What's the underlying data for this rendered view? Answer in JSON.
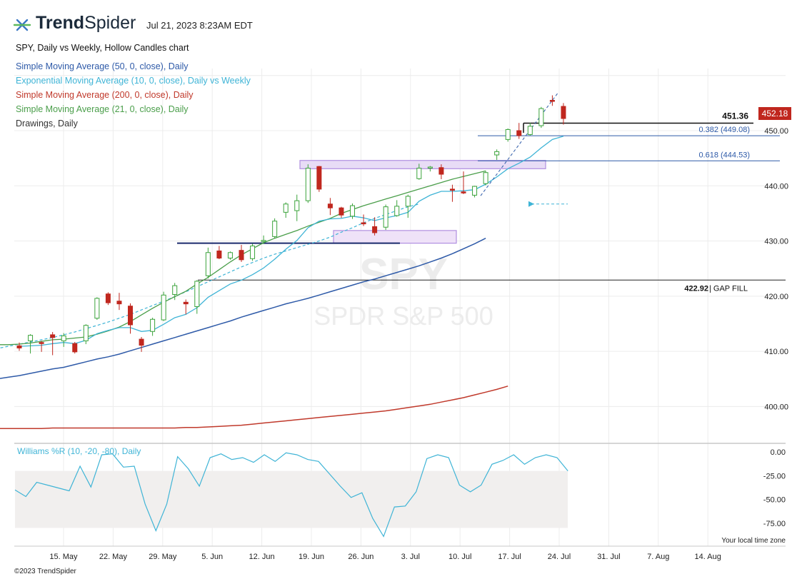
{
  "header": {
    "brand_bold": "Trend",
    "brand_light": "Spider",
    "timestamp": "Jul 21, 2023 8:23AM EDT",
    "chart_title": "SPY, Daily vs Weekly, Hollow Candles chart",
    "legend": [
      {
        "label": "Simple Moving Average (50, 0, close), Daily",
        "color": "#2e5aa8"
      },
      {
        "label": "Exponential Moving Average (10, 0, close), Daily vs Weekly",
        "color": "#3fb4d6"
      },
      {
        "label": "Simple Moving Average (200, 0, close), Daily",
        "color": "#c0392b"
      },
      {
        "label": "Simple Moving Average (21, 0, close), Daily",
        "color": "#4a9e4a"
      },
      {
        "label": "Drawings, Daily",
        "color": "#333333"
      }
    ]
  },
  "watermark": {
    "symbol": "SPY",
    "name": "SPDR S&P 500"
  },
  "last_price": "452.18",
  "footer": {
    "copyright": "©2023 TrendSpider",
    "timezone": "Your local time zone"
  },
  "chart_data": {
    "type": "candlestick",
    "ylim": [
      395,
      461
    ],
    "yticks": [
      "400.00",
      "410.00",
      "420.00",
      "430.00",
      "440.00",
      "450.00"
    ],
    "xticks": [
      "15. May",
      "22. May",
      "29. May",
      "5. Jun",
      "12. Jun",
      "19. Jun",
      "26. Jun",
      "3. Jul",
      "10. Jul",
      "17. Jul",
      "24. Jul",
      "31. Jul",
      "7. Aug",
      "14. Aug"
    ],
    "candles": [
      {
        "o": 411.0,
        "h": 411.6,
        "l": 410.1,
        "c": 410.6
      },
      {
        "o": 411.9,
        "h": 413.1,
        "l": 409.6,
        "c": 412.9
      },
      {
        "o": 411.6,
        "h": 411.9,
        "l": 409.9,
        "c": 411.4
      },
      {
        "o": 413.0,
        "h": 413.5,
        "l": 409.3,
        "c": 412.5
      },
      {
        "o": 411.9,
        "h": 413.3,
        "l": 410.8,
        "c": 412.8
      },
      {
        "o": 411.4,
        "h": 411.7,
        "l": 409.6,
        "c": 409.9
      },
      {
        "o": 411.9,
        "h": 414.9,
        "l": 411.3,
        "c": 414.7
      },
      {
        "o": 416.0,
        "h": 419.8,
        "l": 415.7,
        "c": 419.6
      },
      {
        "o": 420.4,
        "h": 420.7,
        "l": 418.4,
        "c": 418.8
      },
      {
        "o": 419.1,
        "h": 420.6,
        "l": 417.5,
        "c": 418.6
      },
      {
        "o": 418.2,
        "h": 418.7,
        "l": 413.2,
        "c": 414.8
      },
      {
        "o": 412.2,
        "h": 412.6,
        "l": 409.9,
        "c": 411.1
      },
      {
        "o": 413.6,
        "h": 416.1,
        "l": 412.8,
        "c": 415.8
      },
      {
        "o": 415.7,
        "h": 420.8,
        "l": 415.5,
        "c": 420.2
      },
      {
        "o": 420.3,
        "h": 422.4,
        "l": 419.3,
        "c": 421.9
      },
      {
        "o": 418.9,
        "h": 419.4,
        "l": 416.7,
        "c": 418.6
      },
      {
        "o": 418.1,
        "h": 422.9,
        "l": 416.8,
        "c": 422.7
      },
      {
        "o": 423.7,
        "h": 428.8,
        "l": 423.2,
        "c": 427.9
      },
      {
        "o": 428.2,
        "h": 429.1,
        "l": 426.7,
        "c": 426.9
      },
      {
        "o": 426.9,
        "h": 428.1,
        "l": 426.6,
        "c": 427.9
      },
      {
        "o": 428.3,
        "h": 429.3,
        "l": 426.2,
        "c": 426.6
      },
      {
        "o": 426.8,
        "h": 429.5,
        "l": 426.4,
        "c": 429.1
      },
      {
        "o": 430.0,
        "h": 431.0,
        "l": 429.5,
        "c": 430.1
      },
      {
        "o": 430.8,
        "h": 434.1,
        "l": 430.5,
        "c": 433.6
      },
      {
        "o": 435.2,
        "h": 437.0,
        "l": 434.2,
        "c": 436.7
      },
      {
        "o": 435.5,
        "h": 438.4,
        "l": 433.6,
        "c": 437.3
      },
      {
        "o": 437.3,
        "h": 443.9,
        "l": 436.9,
        "c": 443.2
      },
      {
        "o": 443.5,
        "h": 443.6,
        "l": 438.9,
        "c": 439.4
      },
      {
        "o": 436.7,
        "h": 437.8,
        "l": 434.7,
        "c": 436.0
      },
      {
        "o": 436.0,
        "h": 436.2,
        "l": 434.2,
        "c": 434.7
      },
      {
        "o": 434.5,
        "h": 436.8,
        "l": 434.0,
        "c": 436.4
      },
      {
        "o": 433.3,
        "h": 434.8,
        "l": 432.7,
        "c": 433.1
      },
      {
        "o": 432.6,
        "h": 434.3,
        "l": 431.0,
        "c": 431.5
      },
      {
        "o": 432.5,
        "h": 436.6,
        "l": 432.0,
        "c": 436.2
      },
      {
        "o": 434.6,
        "h": 437.4,
        "l": 434.4,
        "c": 436.3
      },
      {
        "o": 436.3,
        "h": 438.4,
        "l": 434.2,
        "c": 438.1
      },
      {
        "o": 441.3,
        "h": 444.0,
        "l": 441.1,
        "c": 443.2
      },
      {
        "o": 443.2,
        "h": 443.6,
        "l": 442.6,
        "c": 443.4
      },
      {
        "o": 443.3,
        "h": 443.9,
        "l": 441.2,
        "c": 442.1
      },
      {
        "o": 439.4,
        "h": 440.2,
        "l": 437.1,
        "c": 439.2
      },
      {
        "o": 438.9,
        "h": 442.6,
        "l": 438.5,
        "c": 438.7
      },
      {
        "o": 438.3,
        "h": 440.0,
        "l": 437.9,
        "c": 439.9
      },
      {
        "o": 440.4,
        "h": 442.7,
        "l": 440.1,
        "c": 442.4
      },
      {
        "o": 445.6,
        "h": 446.6,
        "l": 444.7,
        "c": 446.2
      },
      {
        "o": 448.4,
        "h": 450.4,
        "l": 448.0,
        "c": 450.2
      },
      {
        "o": 450.0,
        "h": 451.4,
        "l": 448.5,
        "c": 449.1
      },
      {
        "o": 449.3,
        "h": 451.4,
        "l": 449.1,
        "c": 450.8
      },
      {
        "o": 450.9,
        "h": 454.3,
        "l": 450.5,
        "c": 454.0
      },
      {
        "o": 455.5,
        "h": 456.4,
        "l": 454.5,
        "c": 455.3
      },
      {
        "o": 454.4,
        "h": 455.0,
        "l": 451.1,
        "c": 452.2
      }
    ],
    "series": [
      {
        "name": "Simple Moving Average (50, 0, close), Daily",
        "color": "#2e5aa8",
        "values": [
          403.6,
          403.9,
          404.2,
          404.5,
          404.8,
          405.0,
          405.3,
          405.6,
          406.0,
          406.4,
          406.8,
          407.1,
          407.6,
          408.1,
          408.6,
          409.0,
          409.5,
          410.1,
          410.7,
          411.3,
          411.9,
          412.5,
          413.1,
          413.7,
          414.3,
          414.9,
          415.5,
          416.2,
          416.8,
          417.4,
          418.0,
          418.6,
          419.1,
          419.6,
          420.2,
          420.8,
          421.4,
          422.0,
          422.6,
          423.1,
          423.7,
          424.3,
          424.9,
          425.5,
          426.2,
          426.9,
          427.7,
          428.6,
          429.5,
          430.5
        ]
      },
      {
        "name": "Exponential Moving Average (10, 0, close), Daily vs Weekly",
        "color": "#3fb4d6",
        "dashed": true,
        "values": [
          408.6,
          408.9,
          409.2,
          409.6,
          410.1,
          410.5,
          410.9,
          411.3,
          411.7,
          412.1,
          412.5,
          413.0,
          413.5,
          414.1,
          414.7,
          415.3,
          416.0,
          416.7,
          417.5,
          418.3,
          419.1,
          419.9,
          420.8,
          421.7,
          422.6,
          423.5,
          424.4,
          425.3,
          426.1,
          426.9,
          427.6,
          428.2,
          428.8,
          429.4,
          430.0,
          430.7,
          431.6,
          432.4,
          433.3,
          434.1,
          434.8,
          435.5,
          436.2,
          436.7
        ]
      },
      {
        "name": "Simple Moving Average (21, 0, close), Daily",
        "color": "#4a9e4a",
        "values": [
          410.8,
          410.8,
          410.9,
          411.0,
          411.1,
          411.2,
          411.2,
          411.3,
          411.5,
          411.8,
          412.1,
          412.2,
          412.4,
          412.6,
          413.1,
          413.7,
          414.4,
          415.4,
          416.6,
          417.8,
          418.9,
          419.9,
          420.9,
          422.2,
          423.4,
          424.8,
          426.2,
          427.5,
          428.6,
          429.7,
          430.5,
          431.2,
          431.9,
          432.7,
          433.4,
          434.1,
          435.0,
          435.7,
          436.4,
          437.0,
          437.6,
          438.2,
          438.8,
          439.4,
          440.0,
          440.6,
          441.2,
          441.7,
          442.2,
          442.7
        ]
      },
      {
        "name": "Exponential Moving Average (10)",
        "color": "#3fb4d6",
        "values": [
          410.9,
          411.0,
          411.1,
          411.4,
          411.6,
          411.4,
          412.0,
          413.2,
          413.8,
          414.3,
          414.3,
          413.6,
          413.8,
          414.9,
          416.1,
          416.7,
          417.9,
          419.8,
          421.0,
          422.2,
          422.9,
          423.9,
          425.1,
          426.7,
          428.5,
          430.1,
          432.4,
          433.6,
          434.0,
          434.1,
          434.5,
          434.2,
          433.7,
          434.2,
          434.6,
          435.2,
          437.2,
          438.3,
          439.0,
          439.0,
          439.1,
          439.3,
          440.3,
          441.6,
          443.1,
          444.1,
          445.2,
          446.9,
          448.4,
          449.0
        ]
      },
      {
        "name": "Simple Moving Average (200, 0, close), Daily",
        "color": "#c0392b",
        "values": [
          395.8,
          395.8,
          395.9,
          395.9,
          396.0,
          396.0,
          396.0,
          396.0,
          396.0,
          396.0,
          396.1,
          396.1,
          396.1,
          396.1,
          396.1,
          396.1,
          396.1,
          396.1,
          396.1,
          396.1,
          396.1,
          396.1,
          396.2,
          396.2,
          396.3,
          396.4,
          396.5,
          396.6,
          396.8,
          397.0,
          397.2,
          397.4,
          397.6,
          397.8,
          398.0,
          398.2,
          398.4,
          398.6,
          398.8,
          399.0,
          399.2,
          399.5,
          399.8,
          400.1,
          400.4,
          400.8,
          401.2,
          401.6,
          402.1,
          402.6,
          403.1,
          403.7
        ]
      }
    ],
    "williams_r": {
      "label": "Williams %R (10, -20, -80), Daily",
      "ylim": [
        -100,
        0
      ],
      "yticks": [
        "0.00",
        "-25.00",
        "-50.00",
        "-75.00"
      ],
      "values": [
        -40,
        -47,
        -32,
        -35,
        -38,
        -41,
        -15,
        -37,
        -3,
        -2,
        -16,
        -15,
        -55,
        -83,
        -55,
        -5,
        -18,
        -36,
        -6,
        -2,
        -8,
        -6,
        -11,
        -3,
        -10,
        -1,
        -3,
        -8,
        -10,
        -23,
        -36,
        -48,
        -43,
        -70,
        -89,
        -58,
        -57,
        -42,
        -7,
        -3,
        -6,
        -35,
        -42,
        -35,
        -13,
        -9,
        -3,
        -13,
        -6,
        -3,
        -6,
        -20
      ]
    },
    "levels": [
      {
        "label": "451.36",
        "value": 451.36
      },
      {
        "label": "0.382 (449.08)",
        "value": 449.08
      },
      {
        "label": "0.618 (444.53)",
        "value": 444.53
      },
      {
        "label": "422.92",
        "suffix": "| GAP FILL",
        "value": 422.92
      }
    ]
  }
}
